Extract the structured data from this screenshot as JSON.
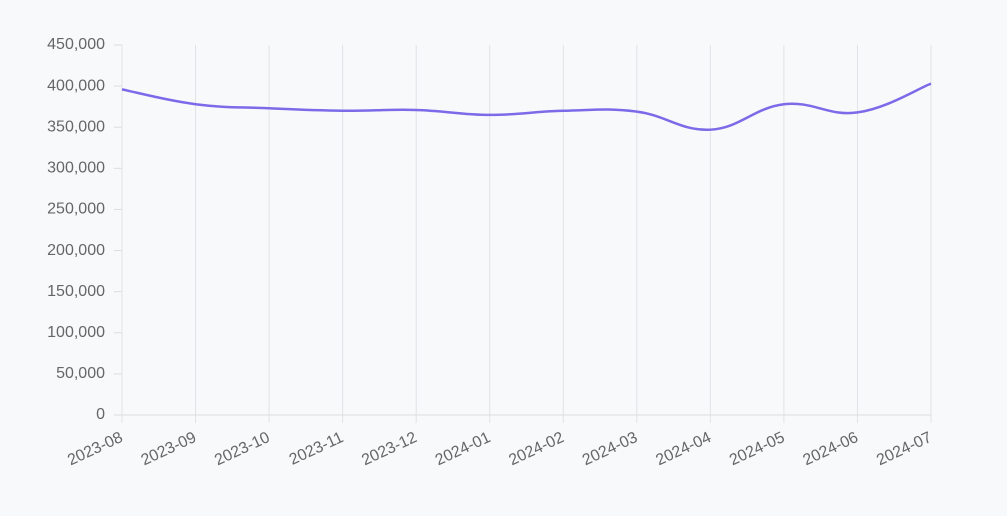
{
  "chart_data": {
    "type": "line",
    "categories": [
      "2023-08",
      "2023-09",
      "2023-10",
      "2023-11",
      "2023-12",
      "2024-01",
      "2024-02",
      "2024-03",
      "2024-04",
      "2024-05",
      "2024-06",
      "2024-07"
    ],
    "series": [
      {
        "color": "#7b6be8",
        "values": [
          396000,
          378000,
          373000,
          370000,
          371000,
          365000,
          370000,
          369000,
          347000,
          378000,
          368000,
          403000
        ]
      }
    ],
    "ylim": [
      0,
      450000
    ],
    "yticks": [
      0,
      {
        "value": 50000,
        "label": "50,000"
      },
      {
        "value": 100000,
        "label": "100,000"
      },
      {
        "value": 150000,
        "label": "150,000"
      },
      {
        "value": 200000,
        "label": "200,000"
      },
      {
        "value": 250000,
        "label": "250,000"
      },
      {
        "value": 300000,
        "label": "300,000"
      },
      {
        "value": 350000,
        "label": "350,000"
      },
      {
        "value": 400000,
        "label": "400,000"
      },
      {
        "value": 450000,
        "label": "450,000"
      }
    ],
    "grid": "x"
  }
}
